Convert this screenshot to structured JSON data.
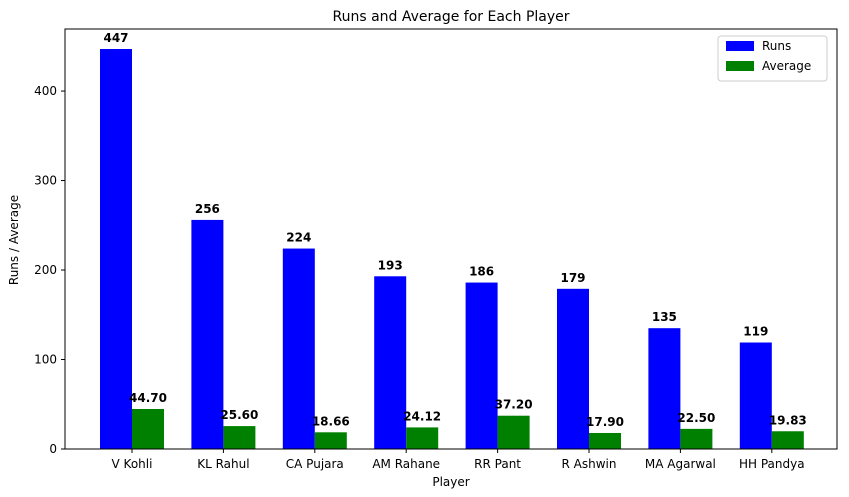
{
  "chart_data": {
    "type": "bar",
    "title": "Runs and Average for Each Player",
    "xlabel": "Player",
    "ylabel": "Runs / Average",
    "categories": [
      "V Kohli",
      "KL Rahul",
      "CA Pujara",
      "AM Rahane",
      "RR Pant",
      "R Ashwin",
      "MA Agarwal",
      "HH Pandya"
    ],
    "series": [
      {
        "name": "Runs",
        "color": "#0000ff",
        "values": [
          447,
          256,
          224,
          193,
          186,
          179,
          135,
          119
        ],
        "labels": [
          "447",
          "256",
          "224",
          "193",
          "186",
          "179",
          "135",
          "119"
        ]
      },
      {
        "name": "Average",
        "color": "#008000",
        "values": [
          44.7,
          25.6,
          18.66,
          24.12,
          37.2,
          17.9,
          22.5,
          19.83
        ],
        "labels": [
          "44.70",
          "25.60",
          "18.66",
          "24.12",
          "37.20",
          "17.90",
          "22.50",
          "19.83"
        ]
      }
    ],
    "ylim": [
      0,
      469.35
    ],
    "yticks": [
      0,
      100,
      200,
      300,
      400
    ],
    "grid": false,
    "legend_position": "top-right"
  }
}
